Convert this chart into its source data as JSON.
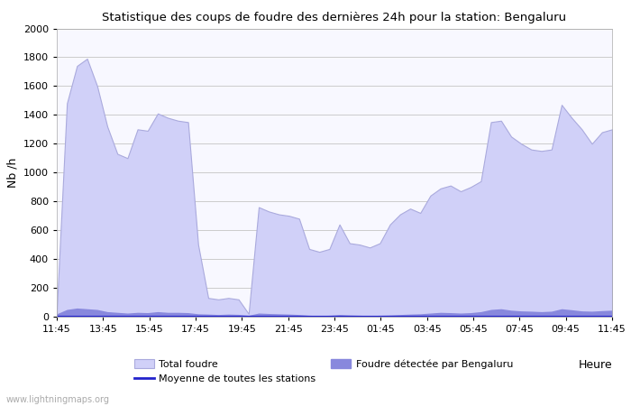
{
  "title": "Statistique des coups de foudre des dernières 24h pour la station: Bengaluru",
  "xlabel": "Heure",
  "ylabel": "Nb /h",
  "watermark": "www.lightningmaps.org",
  "x_ticks": [
    "11:45",
    "13:45",
    "15:45",
    "17:45",
    "19:45",
    "21:45",
    "23:45",
    "01:45",
    "03:45",
    "05:45",
    "07:45",
    "09:45",
    "11:45"
  ],
  "ylim": [
    0,
    2000
  ],
  "yticks": [
    0,
    200,
    400,
    600,
    800,
    1000,
    1200,
    1400,
    1600,
    1800,
    2000
  ],
  "total_foudre_color": "#d0d0f8",
  "total_foudre_edge": "#aaaadd",
  "bengaluru_color": "#8888dd",
  "moyenne_color": "#2222cc",
  "bg_color": "#ffffff",
  "plot_bg_color": "#f8f8ff",
  "grid_color": "#cccccc",
  "total_foudre": [
    50,
    1480,
    1740,
    1790,
    1600,
    1320,
    1130,
    1100,
    1300,
    1290,
    1410,
    1380,
    1360,
    1350,
    500,
    130,
    120,
    130,
    120,
    20,
    760,
    730,
    710,
    700,
    680,
    470,
    450,
    470,
    640,
    510,
    500,
    480,
    510,
    640,
    710,
    750,
    720,
    840,
    890,
    910,
    870,
    900,
    940,
    1350,
    1360,
    1250,
    1200,
    1160,
    1150,
    1160,
    1470,
    1380,
    1300,
    1200,
    1280,
    1300
  ],
  "bengaluru": [
    20,
    50,
    60,
    55,
    50,
    35,
    30,
    25,
    30,
    28,
    35,
    30,
    30,
    28,
    20,
    18,
    15,
    18,
    16,
    10,
    25,
    22,
    20,
    18,
    15,
    10,
    8,
    10,
    15,
    12,
    10,
    8,
    10,
    12,
    15,
    18,
    20,
    25,
    30,
    28,
    25,
    28,
    35,
    50,
    55,
    45,
    40,
    38,
    35,
    38,
    55,
    48,
    40,
    38,
    42,
    45
  ],
  "moyenne": [
    3,
    3,
    3,
    3,
    3,
    3,
    3,
    3,
    3,
    3,
    3,
    3,
    3,
    3,
    3,
    3,
    3,
    3,
    3,
    3,
    3,
    3,
    3,
    3,
    3,
    3,
    3,
    3,
    3,
    3,
    3,
    3,
    3,
    3,
    3,
    3,
    3,
    3,
    3,
    3,
    3,
    3,
    3,
    3,
    3,
    3,
    3,
    3,
    3,
    3,
    3,
    3,
    3,
    3,
    3,
    3
  ],
  "n_points": 56,
  "figwidth": 7.0,
  "figheight": 4.5,
  "dpi": 100
}
